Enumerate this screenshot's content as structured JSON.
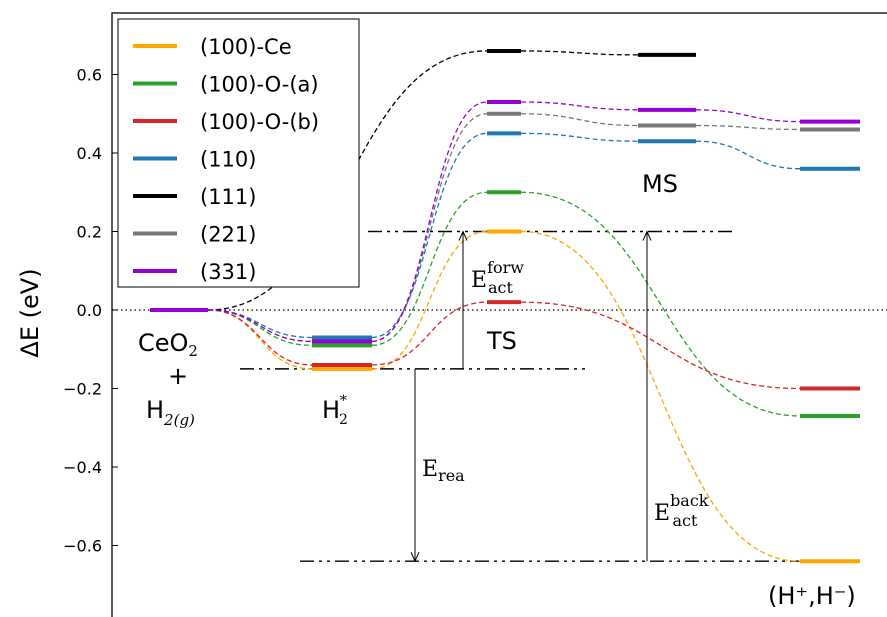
{
  "chart_data": {
    "type": "line",
    "title": "",
    "xlabel": "",
    "ylabel": "ΔE (eV)",
    "ylim": [
      -0.72,
      0.76
    ],
    "yticks": [
      -0.6,
      -0.4,
      -0.2,
      0.0,
      0.2,
      0.4,
      0.6
    ],
    "ytick_labels": [
      "−0.6",
      "−0.4",
      "−0.2",
      "0.0",
      "0.2",
      "0.4",
      "0.6"
    ],
    "stages": [
      "CeO2 + H2(g)",
      "H2*",
      "TS",
      "MS",
      "(H+,H−)"
    ],
    "series": [
      {
        "name": "(100)-Ce",
        "color": "#FFA500",
        "values": [
          0.0,
          -0.15,
          0.2,
          null,
          -0.64
        ]
      },
      {
        "name": "(100)-O-(a)",
        "color": "#2CA02C",
        "values": [
          0.0,
          -0.09,
          0.3,
          null,
          -0.27
        ]
      },
      {
        "name": "(100)-O-(b)",
        "color": "#D62728",
        "values": [
          0.0,
          -0.14,
          0.02,
          null,
          -0.2
        ]
      },
      {
        "name": "(110)",
        "color": "#1F77B4",
        "values": [
          0.0,
          -0.07,
          0.45,
          0.43,
          0.36
        ]
      },
      {
        "name": "(111)",
        "color": "#000000",
        "values": [
          0.0,
          null,
          0.66,
          0.65,
          null
        ]
      },
      {
        "name": "(221)",
        "color": "#777777",
        "values": [
          0.0,
          -0.08,
          0.5,
          0.47,
          0.46
        ]
      },
      {
        "name": "(331)",
        "color": "#9400D3",
        "values": [
          0.0,
          -0.08,
          0.53,
          0.51,
          0.48
        ]
      }
    ],
    "legend_position": "top-left",
    "reference_lines": {
      "forward_top": 0.2,
      "h2_level": -0.15,
      "bottom": -0.64,
      "zero": 0.0
    },
    "annotations": {
      "stage_labels": {
        "ceo2": "CeO",
        "ceo2_sub": "2",
        "plus": "+",
        "h2g": "H",
        "h2g_sub": "2(g)",
        "h2star": "H",
        "h2star_sub": "2",
        "h2star_sup": "*",
        "ts": "TS",
        "ms": "MS",
        "final": "(H⁺,H⁻)"
      },
      "e_forw": "E",
      "e_forw_sup": "forw",
      "e_forw_sub": "act",
      "e_rea": "E",
      "e_rea_sub": "rea",
      "e_back": "E",
      "e_back_sup": "back",
      "e_back_sub": "act"
    }
  }
}
